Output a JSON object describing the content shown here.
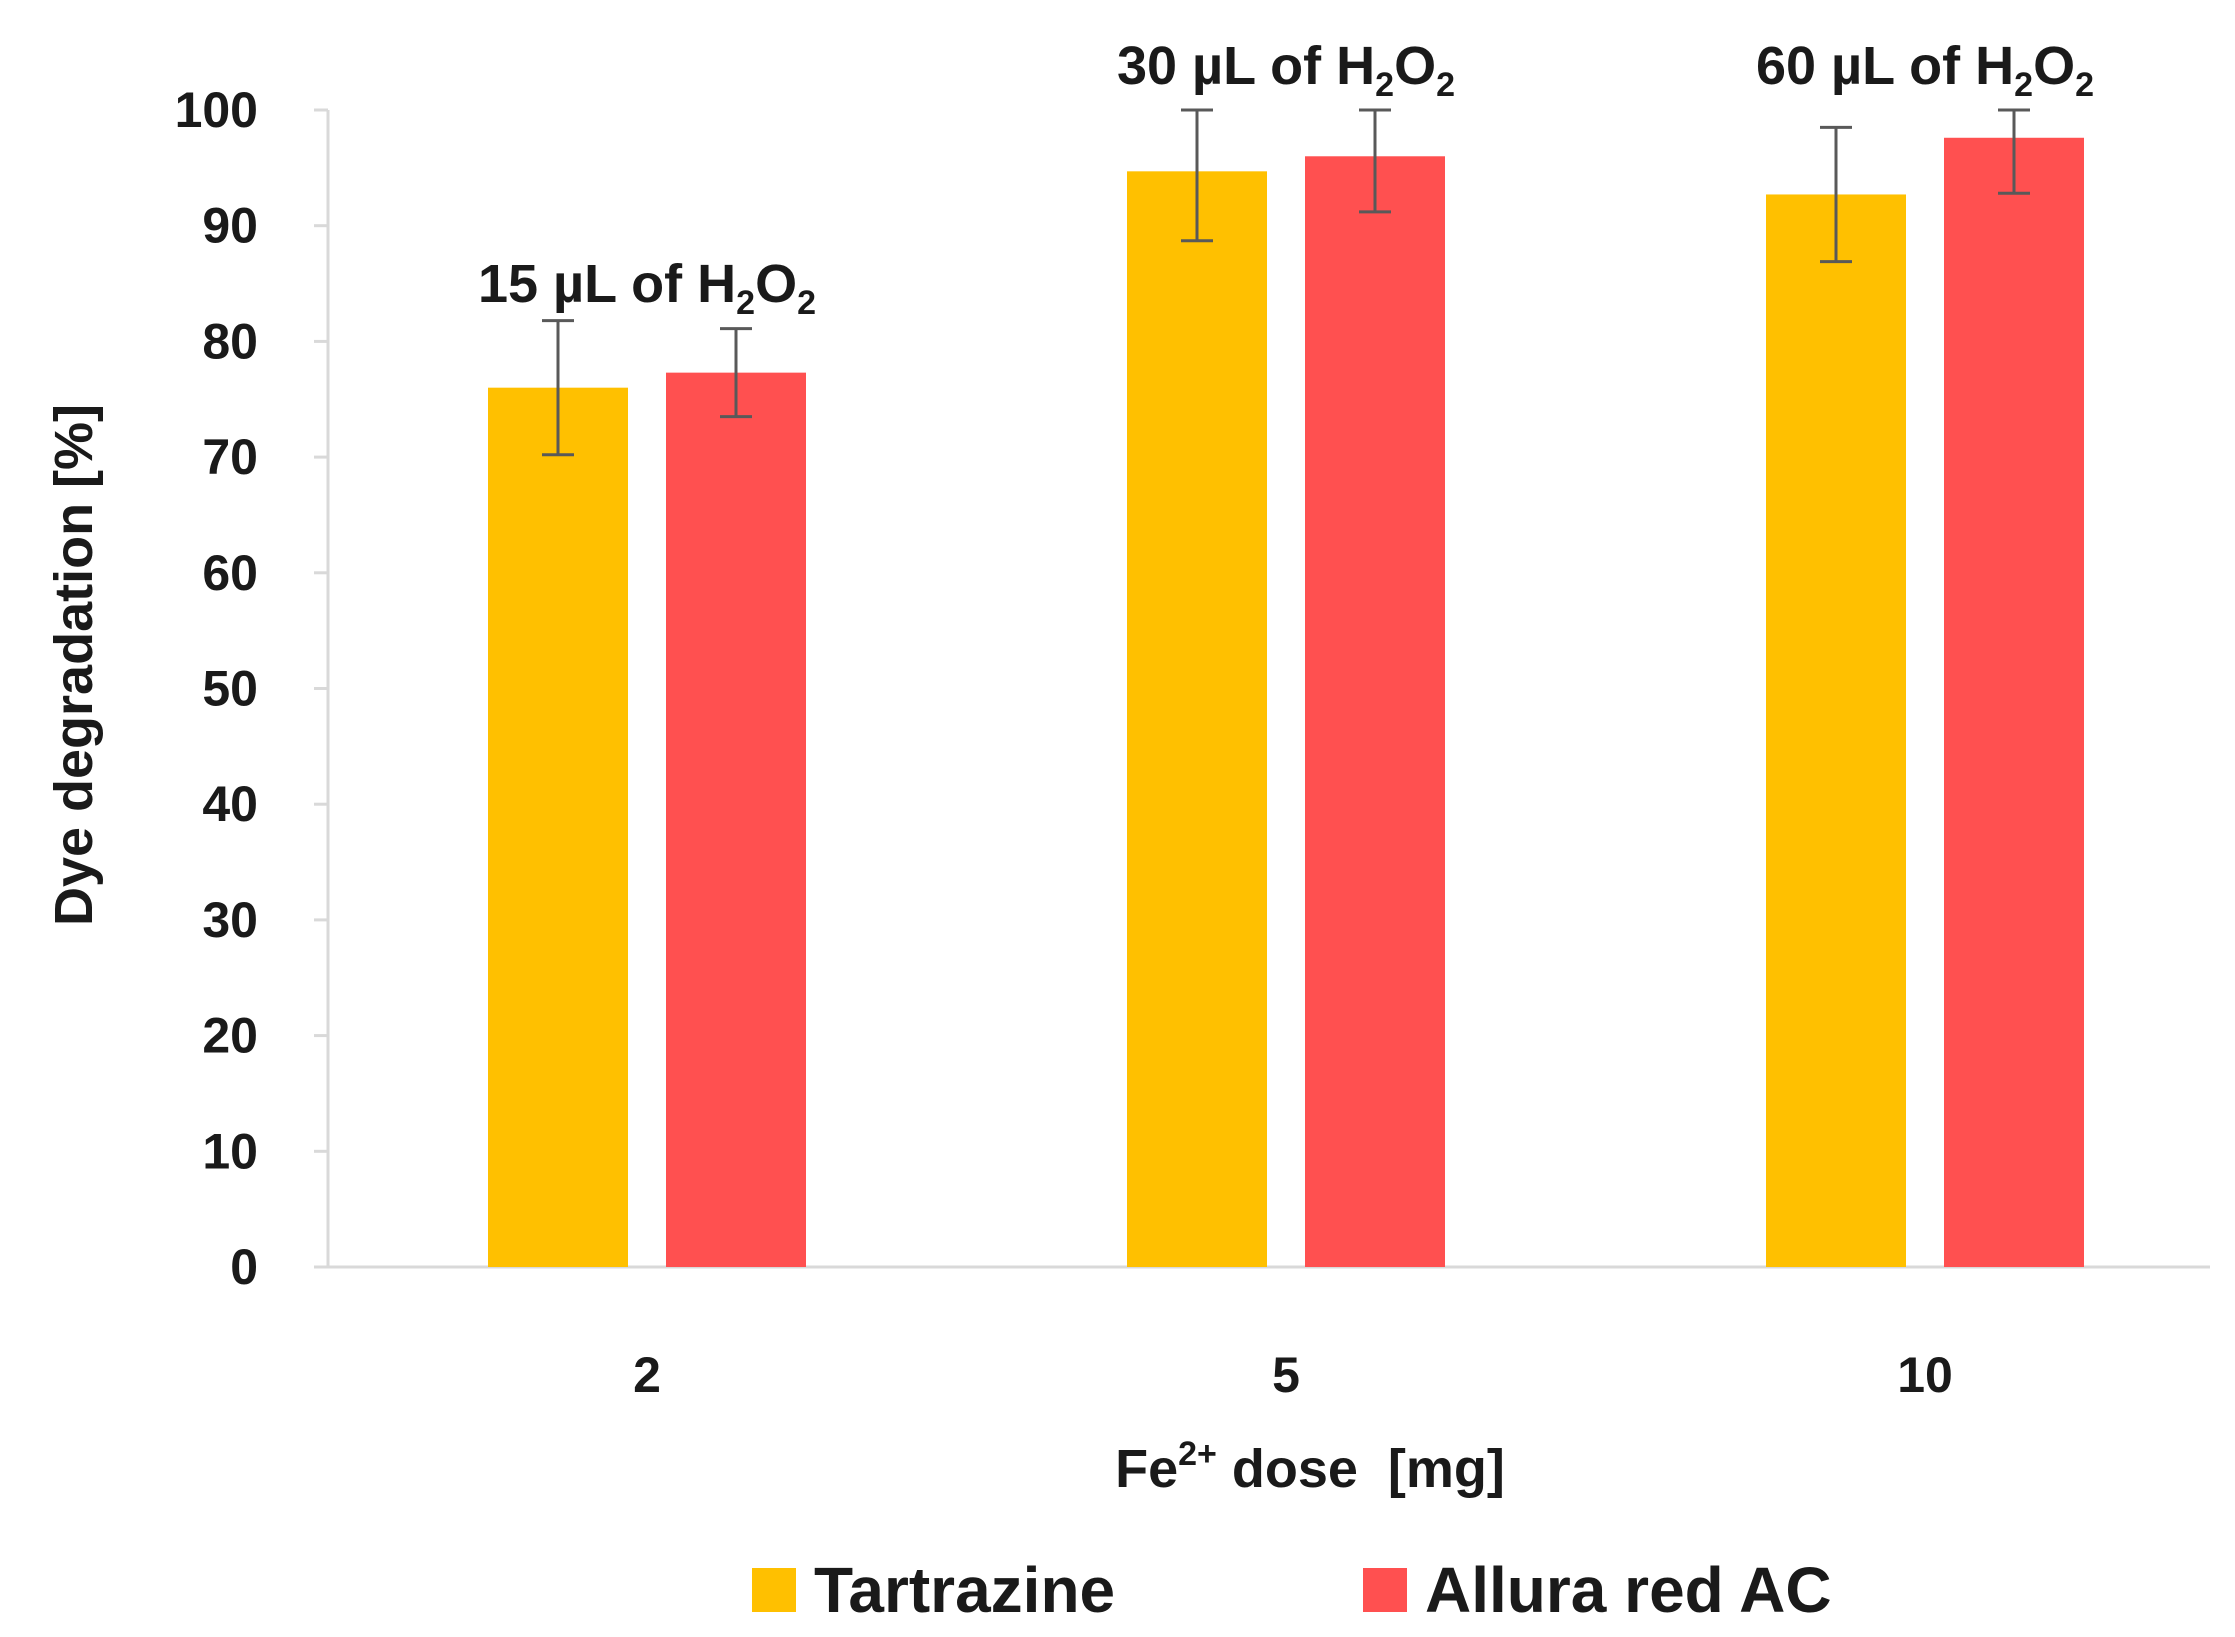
{
  "chart_data": {
    "type": "bar",
    "title": "",
    "xlabel_main": "Fe",
    "xlabel_sup": "2+",
    "xlabel_rest": " dose  [mg]",
    "ylabel": "Dye degradation [%]",
    "ylim": [
      0,
      100
    ],
    "yticks": [
      0,
      10,
      20,
      30,
      40,
      50,
      60,
      70,
      80,
      90,
      100
    ],
    "categories": [
      "2",
      "5",
      "10"
    ],
    "series": [
      {
        "name": "Tartrazine",
        "color": "#FFC000",
        "values": [
          76,
          94.7,
          92.7
        ],
        "errors": [
          5.8,
          6.0,
          5.8
        ]
      },
      {
        "name": "Allura red AC",
        "color": "#FF5050",
        "values": [
          77.3,
          96,
          97.6
        ],
        "errors": [
          3.8,
          4.8,
          4.8
        ]
      }
    ],
    "annotations": [
      {
        "category": "2",
        "prefix": "15 µL of H",
        "sub1": "2",
        "mid": "O",
        "sub2": "2"
      },
      {
        "category": "5",
        "prefix": "30 µL of H",
        "sub1": "2",
        "mid": "O",
        "sub2": "2"
      },
      {
        "category": "10",
        "prefix": "60 µL of H",
        "sub1": "2",
        "mid": "O",
        "sub2": "2"
      }
    ],
    "legend_position": "bottom",
    "grid": false
  }
}
